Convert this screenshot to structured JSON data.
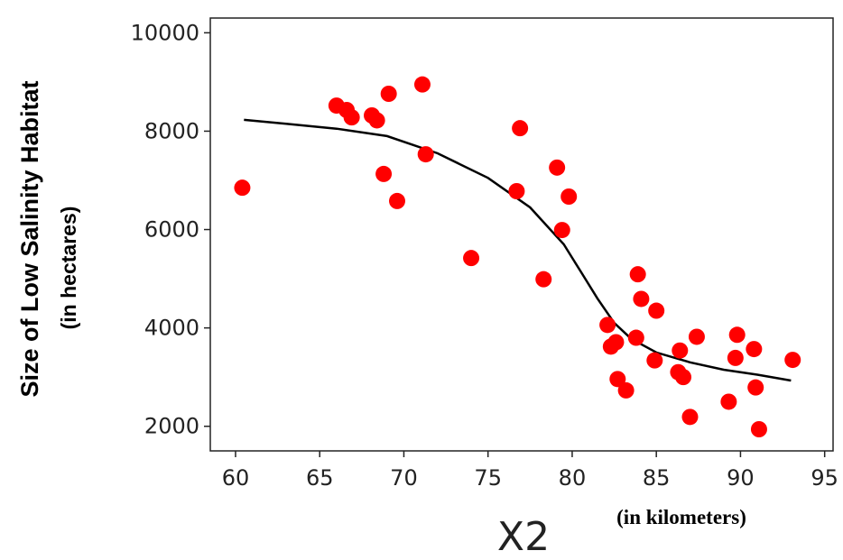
{
  "chart_data": {
    "type": "scatter",
    "xlabel": "X2",
    "xlabel_units": "(in kilometers)",
    "ylabel": "Size of Low Salinity Habitat",
    "ylabel_units": "(in hectares)",
    "xlim": [
      58.5,
      95.5
    ],
    "ylim": [
      1500,
      10300
    ],
    "x_ticks": [
      60,
      65,
      70,
      75,
      80,
      85,
      90,
      95
    ],
    "y_ticks": [
      2000,
      4000,
      6000,
      8000,
      10000
    ],
    "grid": false,
    "series": [
      {
        "type": "scatter",
        "color": "#ff0000",
        "points": [
          [
            60.4,
            6850
          ],
          [
            66.0,
            8520
          ],
          [
            66.6,
            8430
          ],
          [
            66.9,
            8280
          ],
          [
            68.1,
            8320
          ],
          [
            68.4,
            8220
          ],
          [
            69.1,
            8760
          ],
          [
            68.8,
            7130
          ],
          [
            69.6,
            6580
          ],
          [
            71.1,
            8950
          ],
          [
            71.3,
            7530
          ],
          [
            74.0,
            5420
          ],
          [
            76.7,
            6780
          ],
          [
            76.9,
            8060
          ],
          [
            79.1,
            7260
          ],
          [
            79.8,
            6670
          ],
          [
            79.4,
            5990
          ],
          [
            78.3,
            4990
          ],
          [
            82.1,
            4060
          ],
          [
            82.3,
            3620
          ],
          [
            82.6,
            3710
          ],
          [
            82.7,
            2960
          ],
          [
            83.2,
            2730
          ],
          [
            83.9,
            5090
          ],
          [
            84.1,
            4590
          ],
          [
            83.8,
            3800
          ],
          [
            84.9,
            3340
          ],
          [
            85.0,
            4350
          ],
          [
            86.3,
            3100
          ],
          [
            86.4,
            3540
          ],
          [
            86.6,
            3000
          ],
          [
            87.0,
            2190
          ],
          [
            87.4,
            3820
          ],
          [
            89.3,
            2500
          ],
          [
            89.7,
            3390
          ],
          [
            89.8,
            3860
          ],
          [
            90.8,
            3570
          ],
          [
            90.9,
            2790
          ],
          [
            91.1,
            1940
          ],
          [
            93.1,
            3350
          ]
        ]
      },
      {
        "type": "line",
        "color": "#000000",
        "points": [
          [
            60.5,
            8230
          ],
          [
            63,
            8150
          ],
          [
            66,
            8050
          ],
          [
            69,
            7900
          ],
          [
            72,
            7550
          ],
          [
            75,
            7050
          ],
          [
            77.5,
            6450
          ],
          [
            79.5,
            5700
          ],
          [
            80.5,
            5150
          ],
          [
            81.5,
            4600
          ],
          [
            82.5,
            4100
          ],
          [
            83.5,
            3780
          ],
          [
            85,
            3500
          ],
          [
            87,
            3300
          ],
          [
            89,
            3150
          ],
          [
            91,
            3050
          ],
          [
            93,
            2930
          ]
        ]
      }
    ]
  }
}
